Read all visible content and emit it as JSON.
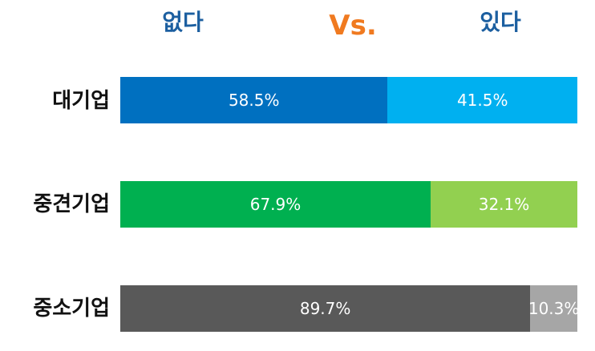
{
  "header": {
    "left_label": "없다",
    "vs_label": "Vs.",
    "right_label": "있다"
  },
  "chart_data": {
    "type": "bar",
    "orientation": "horizontal",
    "stacked": true,
    "percent_scale": true,
    "categories": [
      "대기업",
      "중견기업",
      "중소기업"
    ],
    "series": [
      {
        "name": "없다",
        "values": [
          58.5,
          67.9,
          89.7
        ],
        "labels": [
          "58.5%",
          "67.9%",
          "89.7%"
        ],
        "colors": [
          "#0070c0",
          "#00b050",
          "#595959"
        ]
      },
      {
        "name": "있다",
        "values": [
          41.5,
          32.1,
          10.3
        ],
        "labels": [
          "41.5%",
          "32.1%",
          "10.3%"
        ],
        "colors": [
          "#00b0f0",
          "#92d050",
          "#a6a6a6"
        ]
      }
    ],
    "xlim": [
      0,
      100
    ],
    "grid": false,
    "legend": "top"
  }
}
